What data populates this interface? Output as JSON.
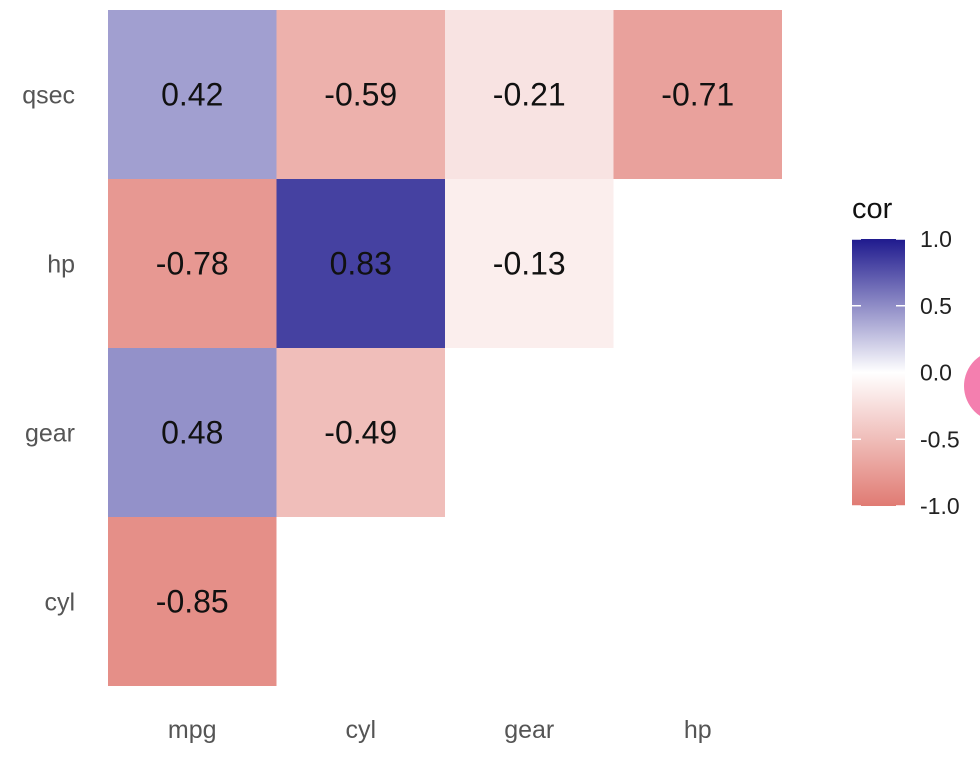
{
  "chart_data": {
    "type": "heatmap",
    "title": "",
    "xlabel": "",
    "ylabel": "",
    "x_categories": [
      "mpg",
      "cyl",
      "gear",
      "hp"
    ],
    "y_categories": [
      "qsec",
      "hp",
      "gear",
      "cyl"
    ],
    "cells": [
      {
        "x": "mpg",
        "y": "qsec",
        "value": 0.42,
        "label": "0.42"
      },
      {
        "x": "cyl",
        "y": "qsec",
        "value": -0.59,
        "label": "-0.59"
      },
      {
        "x": "gear",
        "y": "qsec",
        "value": -0.21,
        "label": "-0.21"
      },
      {
        "x": "hp",
        "y": "qsec",
        "value": -0.71,
        "label": "-0.71"
      },
      {
        "x": "mpg",
        "y": "hp",
        "value": -0.78,
        "label": "-0.78"
      },
      {
        "x": "cyl",
        "y": "hp",
        "value": 0.83,
        "label": "0.83"
      },
      {
        "x": "gear",
        "y": "hp",
        "value": -0.13,
        "label": "-0.13"
      },
      {
        "x": "mpg",
        "y": "gear",
        "value": 0.48,
        "label": "0.48"
      },
      {
        "x": "cyl",
        "y": "gear",
        "value": -0.49,
        "label": "-0.49"
      },
      {
        "x": "mpg",
        "y": "cyl",
        "value": -0.85,
        "label": "-0.85"
      }
    ],
    "legend": {
      "title": "cor",
      "placement": "right",
      "range": [
        -1.0,
        1.0
      ],
      "ticks": [
        {
          "value": 1.0,
          "label": "1.0"
        },
        {
          "value": 0.5,
          "label": "0.5"
        },
        {
          "value": 0.0,
          "label": "0.0"
        },
        {
          "value": -0.5,
          "label": "-0.5"
        },
        {
          "value": -1.0,
          "label": "-1.0"
        }
      ]
    },
    "colors": {
      "low": "#E07B73",
      "mid": "#FFFFFF",
      "high": "#1F1A8E"
    },
    "grid": false
  }
}
